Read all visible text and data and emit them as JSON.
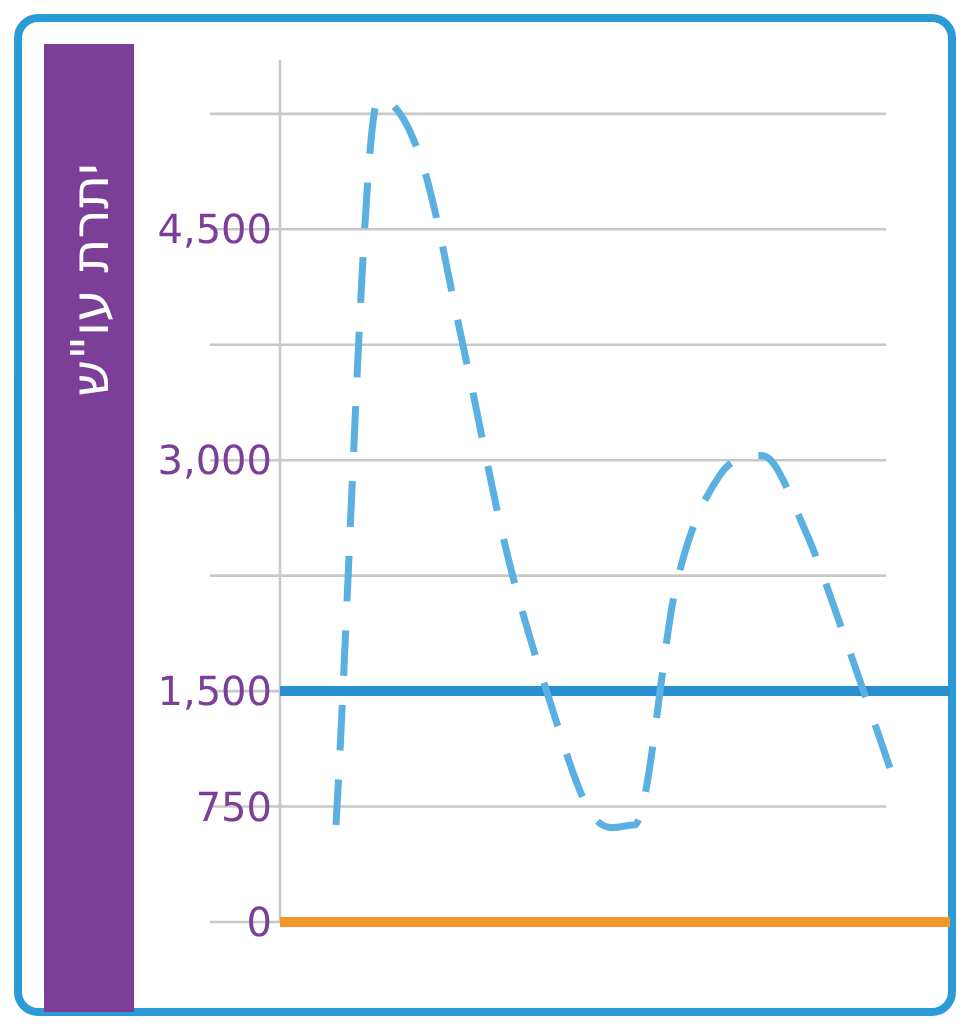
{
  "chart_data": {
    "type": "line",
    "ylabel": "יתרת עו\"ש",
    "categories": [
      null,
      null,
      null,
      null,
      null,
      null,
      null,
      null,
      null,
      null,
      null,
      null,
      null,
      null
    ],
    "series": [
      {
        "color": "#5ab0e0",
        "values": [
          630,
          5350,
          4950,
          3720,
          2410,
          1450,
          700,
          630,
          2210,
          2900,
          3030,
          2550,
          1800,
          1000
        ]
      }
    ],
    "ylim": [
      0,
      5600
    ],
    "yticks": [
      0,
      750,
      {
        "value": 1500,
        "label": "1,500"
      },
      {
        "value": 2250,
        "label": null
      },
      {
        "value": 3000,
        "label": "3,000"
      },
      {
        "value": 3750,
        "label": null
      },
      {
        "value": 4500,
        "label": "4,500"
      },
      {
        "value": 5250,
        "label": null
      }
    ],
    "ref_lines": [
      {
        "axis": "y",
        "value": 1500,
        "color": "#2a8fd0"
      },
      {
        "axis": "y",
        "value": 0,
        "color": "#f0962a"
      }
    ],
    "grid": "y",
    "line_style": "dashed",
    "marker": "none",
    "tick_labels": "y"
  }
}
